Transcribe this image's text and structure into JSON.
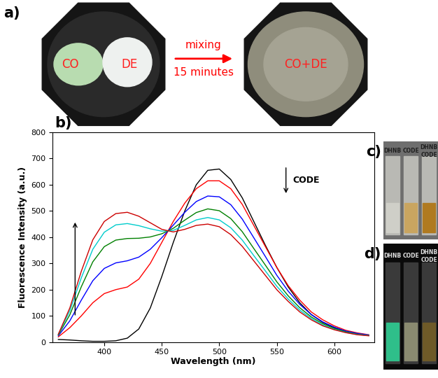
{
  "chart_data": {
    "type": "line",
    "xlabel": "Wavelength (nm)",
    "ylabel": "Fluorescence Intensity (a.u.)",
    "x": [
      360,
      370,
      380,
      390,
      400,
      410,
      420,
      430,
      440,
      450,
      460,
      470,
      480,
      490,
      500,
      510,
      520,
      530,
      540,
      550,
      560,
      570,
      580,
      590,
      600,
      610,
      620,
      630
    ],
    "series": [
      {
        "color": "#000000",
        "values": [
          10,
          8,
          5,
          3,
          3,
          5,
          15,
          50,
          130,
          250,
          380,
          500,
          600,
          655,
          660,
          620,
          550,
          460,
          370,
          285,
          210,
          150,
          105,
          75,
          55,
          40,
          30,
          25
        ]
      },
      {
        "color": "#ff0000",
        "values": [
          20,
          55,
          100,
          150,
          185,
          200,
          210,
          240,
          300,
          380,
          460,
          530,
          585,
          615,
          615,
          585,
          525,
          445,
          365,
          285,
          215,
          160,
          115,
          85,
          62,
          45,
          35,
          28
        ]
      },
      {
        "color": "#0000ff",
        "values": [
          24,
          81,
          160,
          234,
          281,
          302,
          310,
          324,
          354,
          398,
          446,
          495,
          536,
          557,
          554,
          524,
          469,
          398,
          327,
          255,
          194,
          144,
          105,
          77,
          57,
          42,
          33,
          27
        ]
      },
      {
        "color": "#008000",
        "values": [
          27,
          104,
          211,
          306,
          364,
          389,
          395,
          396,
          401,
          413,
          434,
          465,
          494,
          508,
          501,
          471,
          421,
          357,
          294,
          230,
          176,
          131,
          96,
          70,
          52,
          39,
          30,
          25
        ]
      },
      {
        "color": "#00cccc",
        "values": [
          29,
          119,
          245,
          354,
          419,
          447,
          452,
          444,
          432,
          423,
          426,
          445,
          466,
          475,
          466,
          436,
          389,
          330,
          272,
          213,
          164,
          122,
          90,
          65,
          49,
          37,
          29,
          25
        ]
      },
      {
        "color": "#cc0000",
        "values": [
          30,
          130,
          270,
          390,
          460,
          490,
          495,
          480,
          455,
          430,
          420,
          430,
          445,
          450,
          440,
          410,
          365,
          310,
          255,
          200,
          155,
          115,
          85,
          62,
          47,
          36,
          28,
          24
        ]
      }
    ],
    "xlim": [
      355,
      635
    ],
    "ylim": [
      0,
      800
    ],
    "xticks": [
      400,
      450,
      500,
      550,
      600
    ],
    "yticks": [
      0,
      100,
      200,
      300,
      400,
      500,
      600,
      700,
      800
    ],
    "annotation": "CODE"
  },
  "panel_labels": [
    "a)",
    "b)",
    "c)",
    "d)"
  ],
  "photo_a": {
    "left_blobs": [
      "CO",
      "DE"
    ],
    "arrow_top": "mixing",
    "arrow_bottom": "15 minutes",
    "right_label": "CO+DE"
  },
  "photo_c": {
    "labels": [
      "DHNB",
      "CODE",
      "DHNB\nCODE"
    ]
  },
  "photo_d": {
    "labels": [
      "DHNB",
      "CODE",
      "DHNB\nCODE"
    ]
  }
}
